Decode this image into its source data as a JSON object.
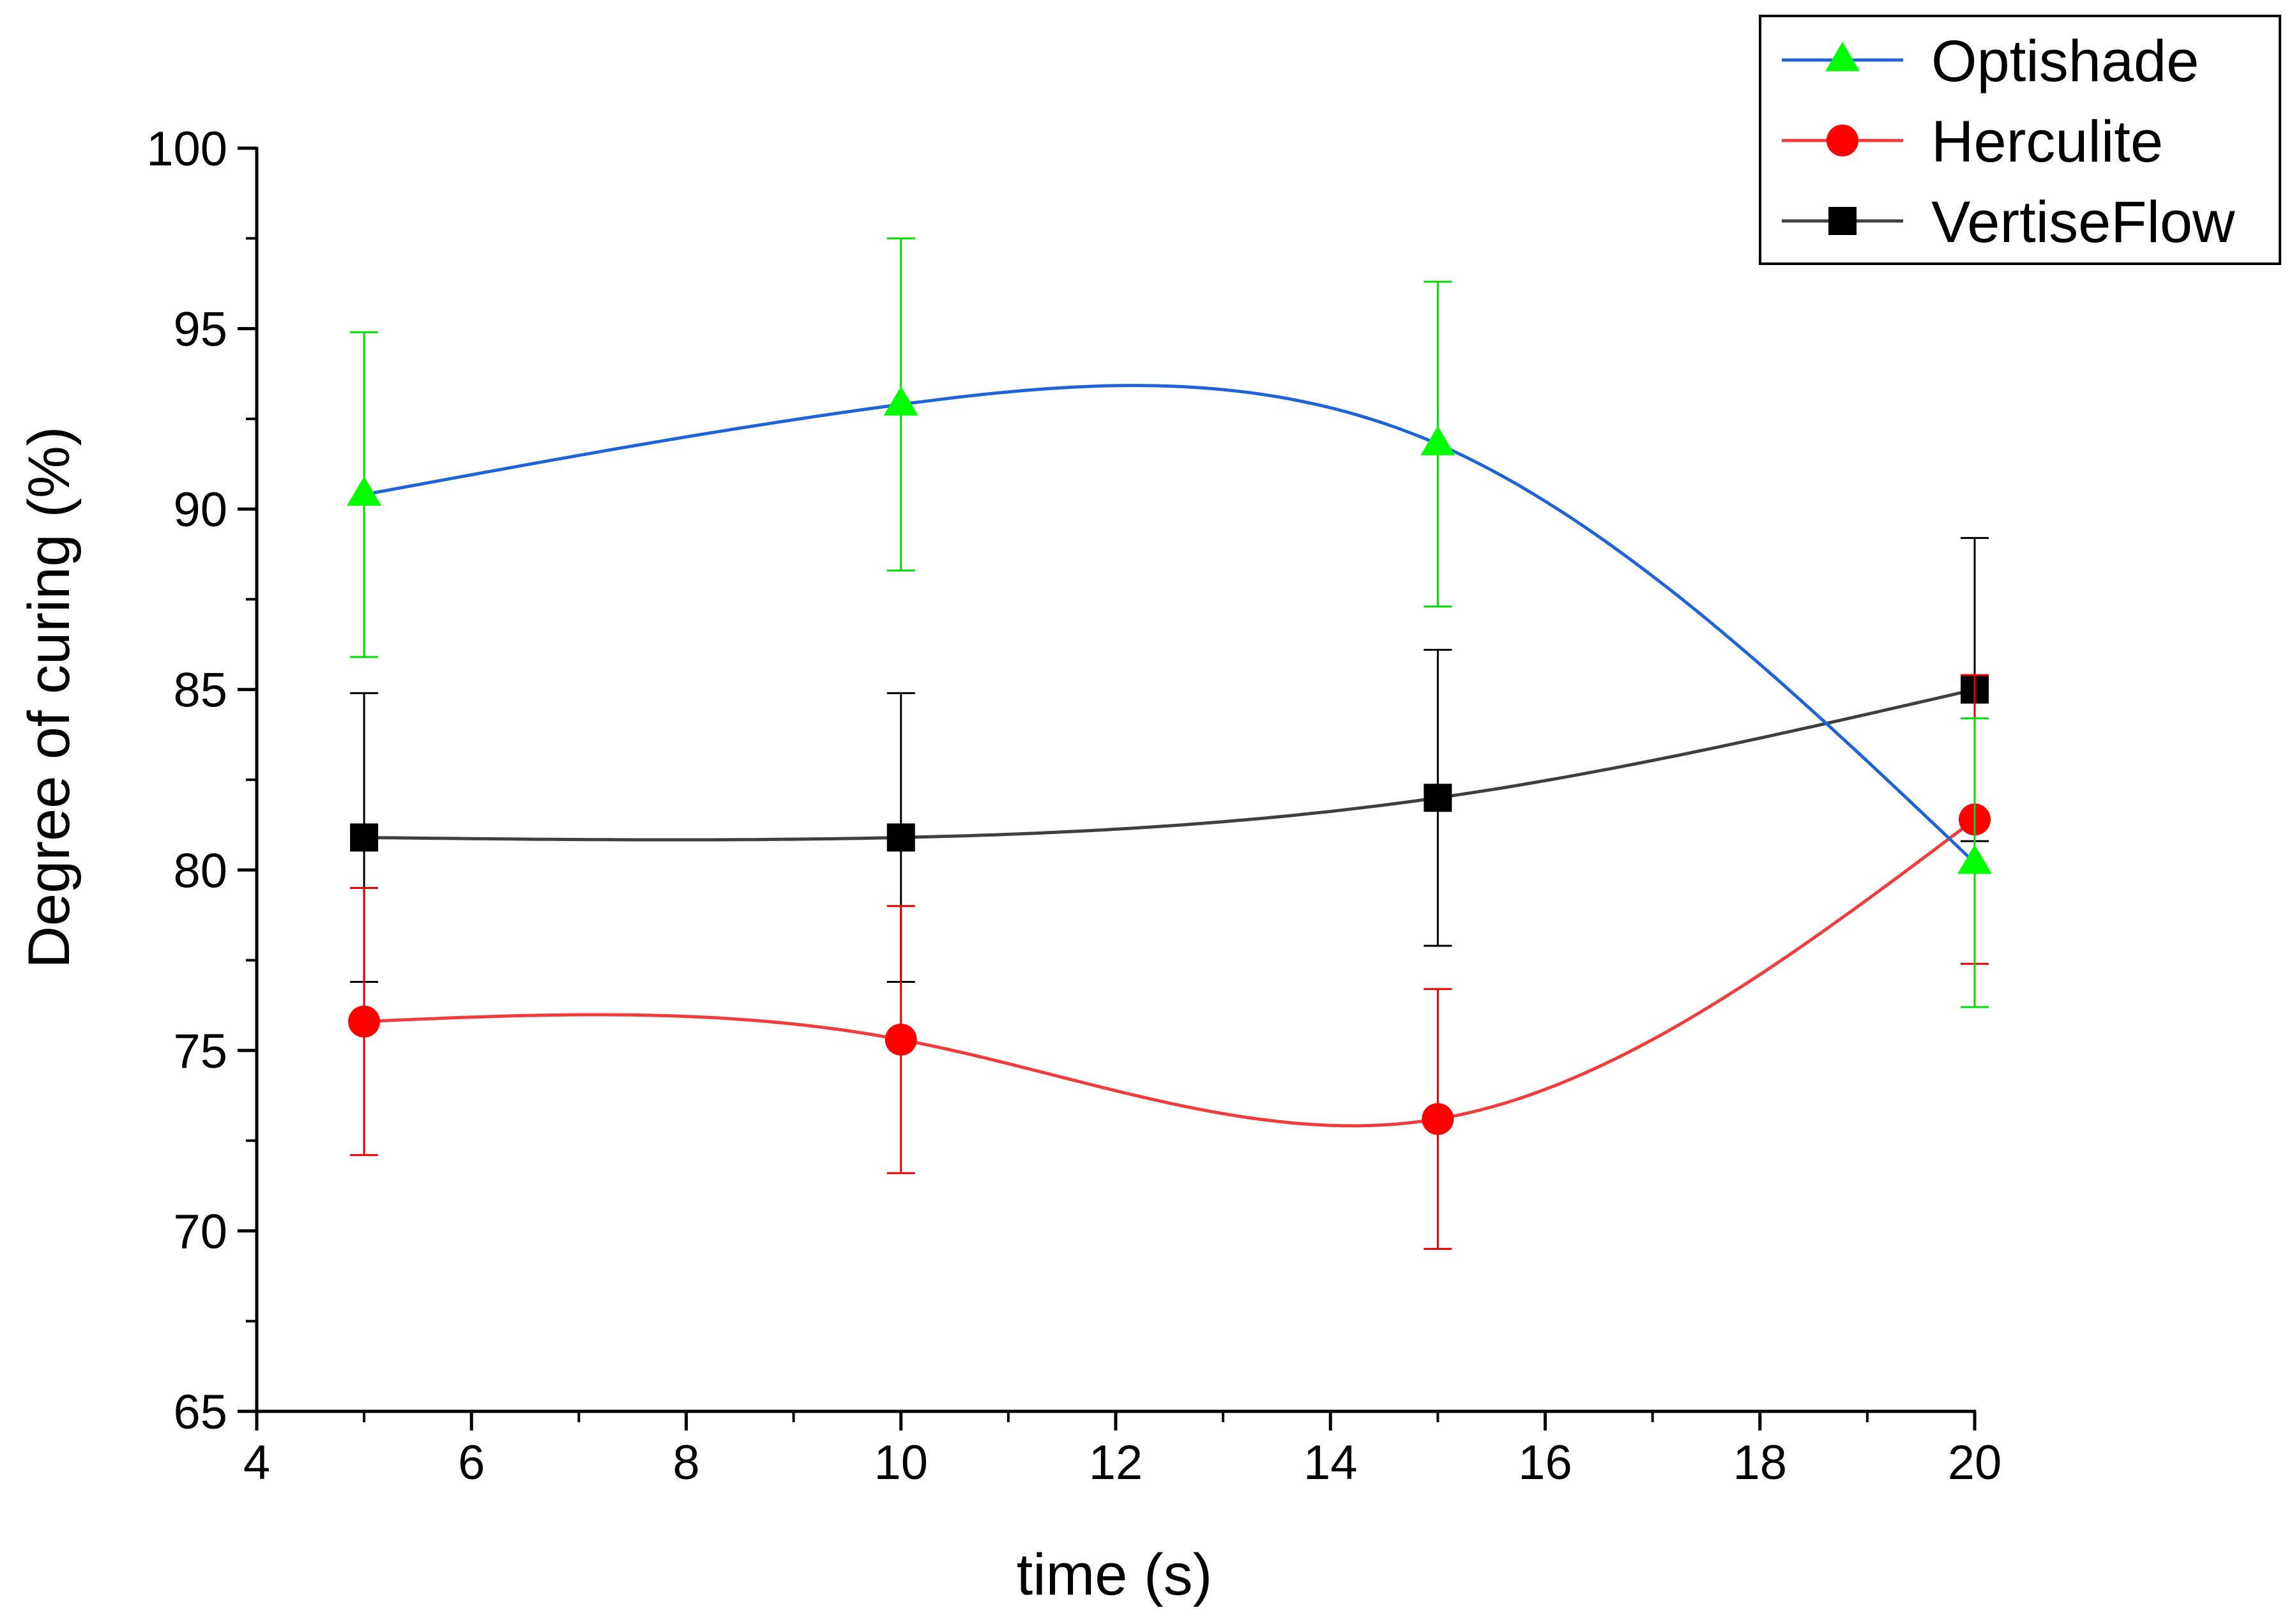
{
  "chart_data": {
    "type": "line",
    "title": "",
    "xlabel": "time (s)",
    "ylabel": "Degree of curing (%)",
    "xlim": [
      4,
      20
    ],
    "ylim": [
      65,
      100
    ],
    "x_major_ticks": [
      4,
      6,
      8,
      10,
      12,
      14,
      16,
      18,
      20
    ],
    "x_minor_ticks": [
      5,
      7,
      9,
      11,
      13,
      15,
      17,
      19
    ],
    "y_major_ticks": [
      65,
      70,
      75,
      80,
      85,
      90,
      95,
      100
    ],
    "y_minor_ticks": [
      67.5,
      72.5,
      77.5,
      82.5,
      87.5,
      92.5,
      97.5
    ],
    "x_tick_labels": [
      "4",
      "6",
      "8",
      "10",
      "12",
      "14",
      "16",
      "18",
      "20"
    ],
    "y_tick_labels": [
      "65",
      "70",
      "75",
      "80",
      "85",
      "90",
      "95",
      "100"
    ],
    "x": [
      5,
      10,
      15,
      20
    ],
    "legend_position": "top-right",
    "grid": false,
    "series": [
      {
        "name": "Optishade",
        "line_color": "#1f63d9",
        "marker": "triangle",
        "marker_color": "#00ff00",
        "error_color": "#00dd00",
        "values": [
          90.4,
          92.9,
          91.8,
          80.2
        ],
        "errors": [
          4.5,
          4.6,
          4.5,
          4.0
        ]
      },
      {
        "name": "Herculite",
        "line_color": "#f03c3c",
        "marker": "circle",
        "marker_color": "#ff0000",
        "error_color": "#e60000",
        "values": [
          75.8,
          75.3,
          73.1,
          81.4
        ],
        "errors": [
          3.7,
          3.7,
          3.6,
          4.0
        ]
      },
      {
        "name": "VertiseFlow",
        "line_color": "#3f3f3f",
        "marker": "square",
        "marker_color": "#000000",
        "error_color": "#000000",
        "values": [
          80.9,
          80.9,
          82.0,
          85.0
        ],
        "errors": [
          4.0,
          4.0,
          4.1,
          4.2
        ]
      }
    ]
  }
}
